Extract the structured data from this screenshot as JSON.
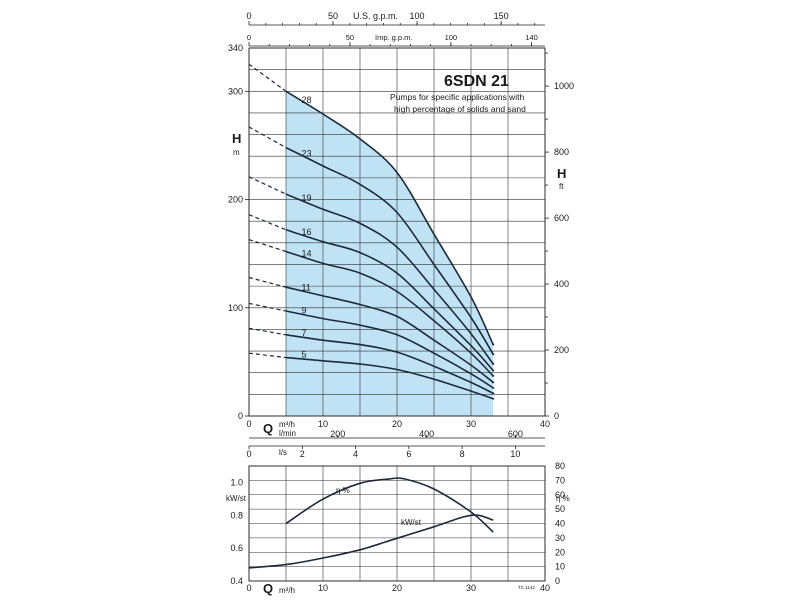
{
  "chart_data": [
    {
      "type": "line",
      "model": "6SDN 21",
      "description_lines": [
        "Pumps for specific applications with",
        "high percentage of solids and sand"
      ],
      "y_left": {
        "label": "H",
        "unit": "m",
        "range": [
          0,
          340
        ],
        "ticks": [
          0,
          100,
          200,
          300
        ],
        "end_label": "340"
      },
      "y_right": {
        "label": "H",
        "unit": "ft",
        "ticks": [
          0,
          200,
          400,
          600,
          800,
          1000
        ]
      },
      "x_top_usgpm": {
        "label": "U.S. g.p.m.",
        "ticks": [
          0,
          50,
          100,
          150
        ]
      },
      "x_top_impgpm": {
        "label": "Imp. g.p.m.",
        "ticks": [
          0,
          50,
          100,
          140
        ]
      },
      "x_bottom_m3h": {
        "label": "Q",
        "unit": "m³/h",
        "ticks": [
          0,
          10,
          20,
          30,
          40
        ],
        "range": [
          0,
          40
        ]
      },
      "x_bottom_lmin": {
        "unit": "l/min",
        "ticks": [
          200,
          400,
          600
        ]
      },
      "x_bottom_ls": {
        "unit": "l/s",
        "ticks": [
          0,
          2,
          4,
          6,
          8,
          10
        ]
      },
      "operating_range_m3h": [
        5,
        33
      ],
      "stage_labels": [
        "28",
        "23",
        "19",
        "16",
        "14",
        "11",
        "9",
        "7",
        "5"
      ],
      "series": [
        {
          "name": "28",
          "x": [
            0,
            5,
            10,
            15,
            20,
            25,
            30,
            33
          ],
          "y": [
            325,
            300,
            279,
            256,
            225,
            168,
            110,
            66
          ]
        },
        {
          "name": "23",
          "x": [
            0,
            5,
            10,
            15,
            20,
            25,
            30,
            33
          ],
          "y": [
            267,
            248,
            231,
            214,
            188,
            140,
            91,
            57
          ]
        },
        {
          "name": "19",
          "x": [
            0,
            5,
            10,
            15,
            20,
            25,
            30,
            33
          ],
          "y": [
            221,
            205,
            191,
            178,
            156,
            117,
            76,
            48
          ]
        },
        {
          "name": "16",
          "x": [
            0,
            5,
            10,
            15,
            20,
            25,
            30,
            33
          ],
          "y": [
            186,
            172,
            161,
            151,
            132,
            99,
            65,
            42
          ]
        },
        {
          "name": "14",
          "x": [
            0,
            5,
            10,
            15,
            20,
            25,
            30,
            33
          ],
          "y": [
            163,
            152,
            141,
            132,
            115,
            88,
            58,
            37
          ]
        },
        {
          "name": "11",
          "x": [
            0,
            5,
            10,
            15,
            20,
            25,
            30,
            33
          ],
          "y": [
            128,
            119,
            111,
            103,
            92,
            70,
            47,
            31
          ]
        },
        {
          "name": "9",
          "x": [
            0,
            5,
            10,
            15,
            20,
            25,
            30,
            33
          ],
          "y": [
            104,
            97,
            90,
            84,
            75,
            58,
            39,
            26
          ]
        },
        {
          "name": "7",
          "x": [
            0,
            5,
            10,
            15,
            20,
            25,
            30,
            33
          ],
          "y": [
            81,
            75,
            70,
            66,
            59,
            46,
            31,
            21
          ]
        },
        {
          "name": "5",
          "x": [
            0,
            5,
            10,
            15,
            20,
            25,
            30,
            33
          ],
          "y": [
            58,
            54,
            51,
            48,
            43,
            34,
            23,
            16
          ]
        }
      ]
    },
    {
      "type": "line",
      "x_label": "Q",
      "x_unit": "m³/h",
      "x_range": [
        0,
        40
      ],
      "x_ticks": [
        0,
        10,
        20,
        30,
        40
      ],
      "y_left": {
        "label": "kW/st",
        "range": [
          0.4,
          1.1
        ],
        "ticks": [
          "0.4",
          "0.6",
          "0.8",
          "1.0"
        ]
      },
      "y_right": {
        "label": "η %",
        "range": [
          0,
          80
        ],
        "ticks": [
          0,
          10,
          20,
          30,
          40,
          50,
          60,
          70,
          80
        ]
      },
      "code": "TC 1142",
      "series": [
        {
          "name": "η %",
          "axis": "right",
          "x": [
            5,
            10,
            15,
            19,
            21,
            25,
            30,
            33
          ],
          "y": [
            40,
            57,
            68,
            71,
            71,
            64,
            48,
            34
          ]
        },
        {
          "name": "kW/st",
          "axis": "left",
          "x": [
            0,
            5,
            10,
            15,
            20,
            25,
            29,
            31,
            33
          ],
          "y": [
            0.48,
            0.5,
            0.54,
            0.59,
            0.66,
            0.73,
            0.79,
            0.8,
            0.77
          ]
        }
      ]
    }
  ]
}
